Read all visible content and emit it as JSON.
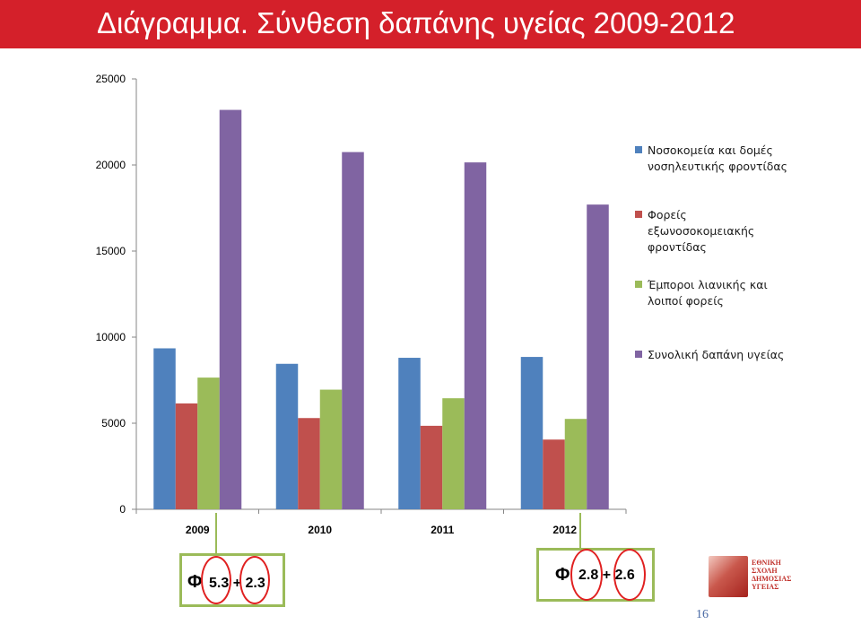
{
  "slide": {
    "title": "Διάγραμμα. Σύνθεση δαπάνης υγείας 2009-2012",
    "page_number": "16"
  },
  "colors": {
    "title_bar": "#d4202a",
    "series": [
      "#4f81bd",
      "#c0504d",
      "#9bbb59",
      "#8064a2"
    ],
    "annotation_border": "#9bbb59",
    "annotation_circle": "#e02020"
  },
  "chart_data": {
    "type": "bar",
    "title": "",
    "xlabel": "",
    "ylabel": "",
    "categories": [
      "2009",
      "2010",
      "2011",
      "2012"
    ],
    "ylim": [
      0,
      25000
    ],
    "yticks": [
      "0",
      "5000",
      "10000",
      "15000",
      "20000",
      "25000"
    ],
    "yticks_values": [
      0,
      5000,
      10000,
      15000,
      20000,
      25000
    ],
    "grid": false,
    "legend_position": "right",
    "series": [
      {
        "name": "Νοσοκομεία και δομές νοσηλευτικής φροντίδας",
        "legend_lines": [
          "Νοσοκομεία και δομές",
          "νοσηλευτικής φροντίδας"
        ],
        "values": [
          9350,
          8450,
          8800,
          8850
        ]
      },
      {
        "name": "Φορείς εξωνοσοκομειακής φροντίδας",
        "legend_lines": [
          "Φορείς",
          "εξωνοσοκομειακής",
          "φροντίδας"
        ],
        "values": [
          6150,
          5300,
          4850,
          4050
        ]
      },
      {
        "name": "Έμποροι λιανικής και λοιποί φορείς",
        "legend_lines": [
          "Έμποροι λιανικής και",
          "λοιποί φορείς"
        ],
        "values": [
          7650,
          6950,
          6450,
          5250
        ]
      },
      {
        "name": "Συνολική δαπάνη υγείας",
        "legend_lines": [
          "Συνολική δαπάνη υγείας"
        ],
        "values": [
          23200,
          20750,
          20150,
          17700
        ]
      }
    ]
  },
  "annotations": {
    "left": {
      "symbol": "Φ",
      "text": "5.3 + 2.3"
    },
    "right": {
      "symbol": "Φ",
      "text": "2.8 + 2.6"
    }
  },
  "logo": {
    "lines": [
      "ΕΘΝΙΚΗ",
      "ΣΧΟΛΗ",
      "ΔΗΜΟΣΙΑΣ",
      "ΥΓΕΙΑΣ"
    ]
  }
}
